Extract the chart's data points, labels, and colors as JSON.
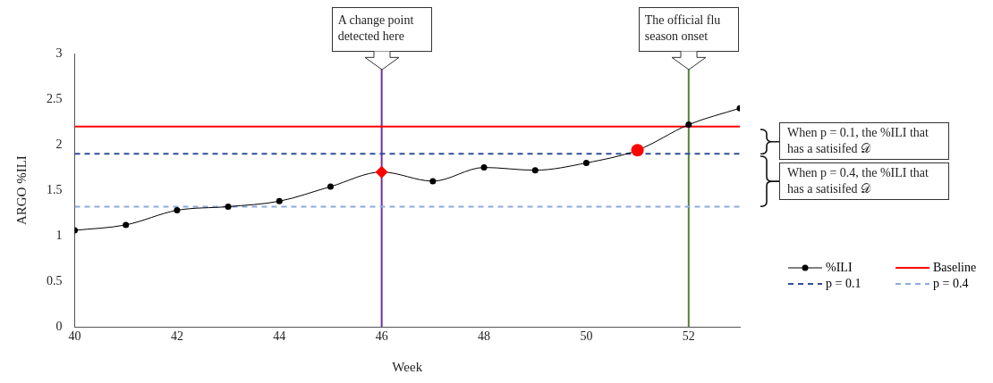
{
  "chart_data": {
    "type": "line",
    "xlabel": "Week",
    "ylabel": "ARGO %ILI",
    "x": [
      40,
      41,
      42,
      43,
      44,
      45,
      46,
      47,
      48,
      49,
      50,
      51,
      52,
      53
    ],
    "series": [
      {
        "name": "%ILI",
        "color": "#000000",
        "marker": "circle",
        "line_style": "solid",
        "values": [
          1.06,
          1.12,
          1.28,
          1.32,
          1.38,
          1.54,
          1.7,
          1.6,
          1.75,
          1.72,
          1.8,
          1.94,
          2.22,
          2.4
        ]
      },
      {
        "name": "Baseline",
        "type": "line",
        "color": "#ff0000",
        "marker": "none",
        "line_style": "solid",
        "x": [
          40,
          53
        ],
        "values": [
          2.2,
          2.2
        ]
      },
      {
        "name": "p = 0.1",
        "type": "line",
        "color": "#2f4f9a",
        "marker": "none",
        "line_style": "dashed",
        "x": [
          40,
          53
        ],
        "values": [
          1.9,
          1.9
        ]
      },
      {
        "name": "p = 0.4",
        "type": "line",
        "color": "#8eaadb",
        "marker": "none",
        "line_style": "dashed",
        "x": [
          40,
          53
        ],
        "values": [
          1.32,
          1.32
        ]
      },
      {
        "type": "scatter",
        "color": "#ff0000",
        "marker": "diamond",
        "x": [
          46
        ],
        "values": [
          1.7
        ]
      },
      {
        "type": "scatter",
        "color": "#ff0000",
        "marker": "circle",
        "x": [
          51
        ],
        "values": [
          1.94
        ]
      }
    ],
    "xlim": [
      40,
      53
    ],
    "xticks": [
      40,
      42,
      44,
      46,
      48,
      50,
      52
    ],
    "ylim": [
      0,
      3
    ],
    "yticks": [
      0,
      0.5,
      1,
      1.5,
      2,
      2.5,
      3
    ],
    "grid": false,
    "legend": "right",
    "ref_lines": [
      {
        "axis": "x",
        "value": 46,
        "label": "A change point detected here",
        "color": "#7030a0"
      },
      {
        "axis": "x",
        "value": 52,
        "label": "The official flu season onset",
        "color": "#548235"
      }
    ],
    "annotations": [
      "When p = 0.1, the %ILI that has a satisifed 𝒟",
      "When p = 0.4, the %ILI that has a satisifed 𝒟"
    ]
  }
}
